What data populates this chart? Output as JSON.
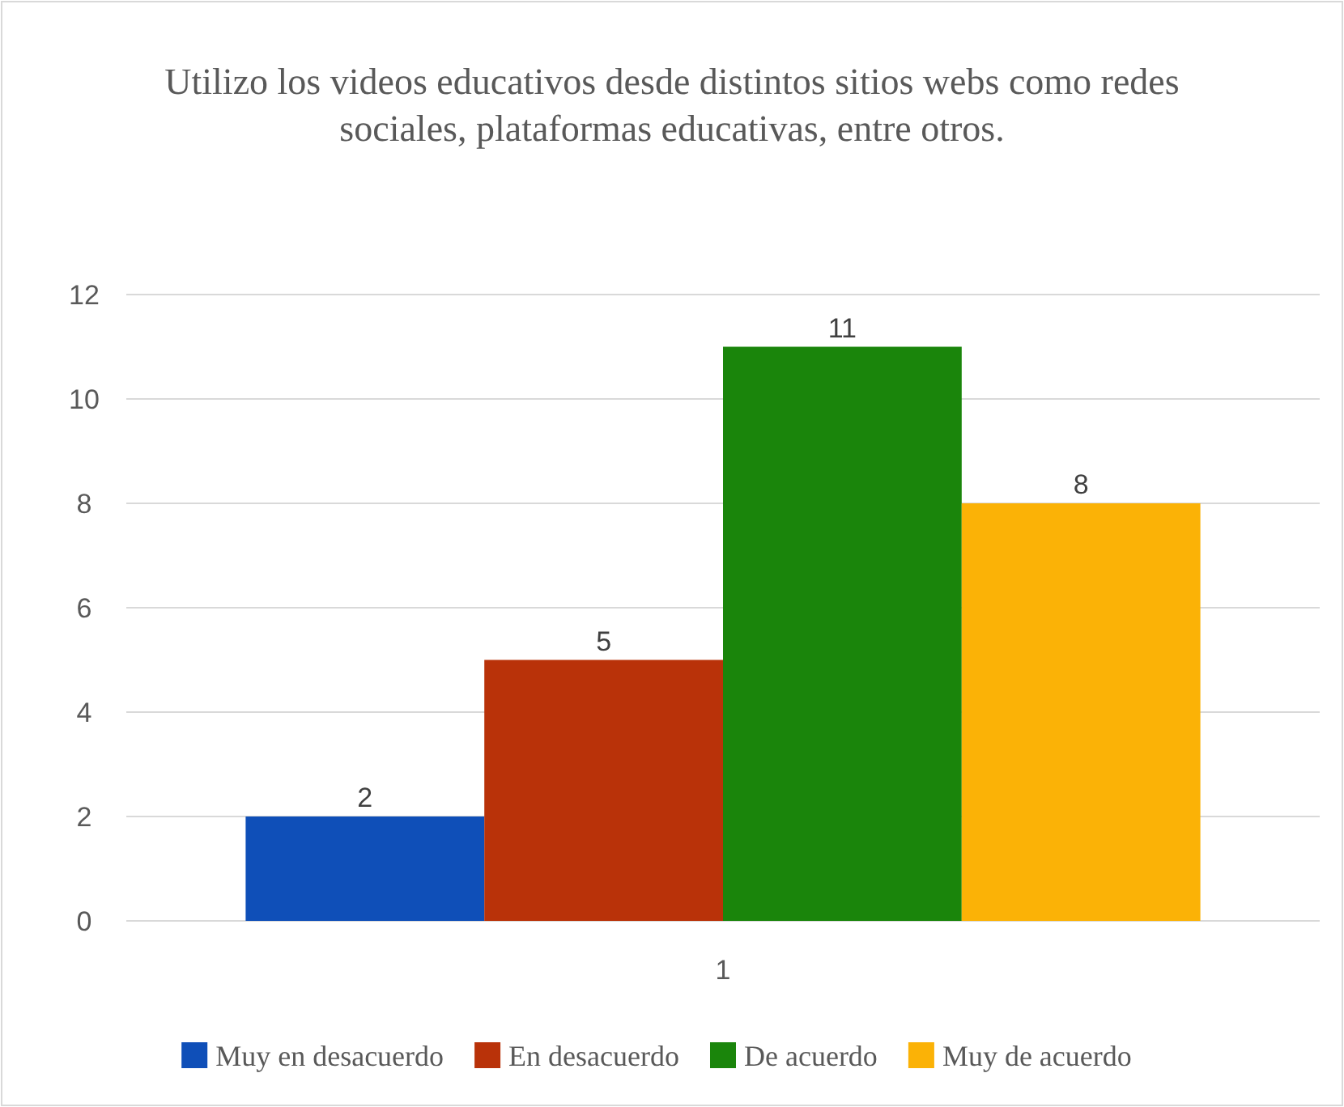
{
  "chart_data": {
    "type": "bar",
    "title": "Utilizo los videos educativos desde distintos sitios webs como redes sociales, plataformas educativas, entre otros.",
    "categories": [
      "1"
    ],
    "series": [
      {
        "name": "Muy en desacuerdo",
        "color": "#0f4fb8",
        "values": [
          2
        ]
      },
      {
        "name": "En desacuerdo",
        "color": "#b93209",
        "values": [
          5
        ]
      },
      {
        "name": "De acuerdo",
        "color": "#1a850b",
        "values": [
          11
        ]
      },
      {
        "name": "Muy de acuerdo",
        "color": "#fbb206",
        "values": [
          8
        ]
      }
    ],
    "ylim": [
      0,
      12
    ],
    "yticks": [
      0,
      2,
      4,
      6,
      8,
      10,
      12
    ],
    "grid": "y",
    "data_labels": true,
    "legend": "bottom"
  }
}
